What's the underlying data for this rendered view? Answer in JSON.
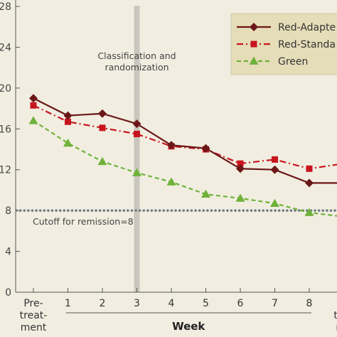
{
  "chart_data": {
    "type": "line",
    "x_ticks": [
      "Pre-\ntreat-\nment",
      "1",
      "2",
      "3",
      "4",
      "5",
      "6",
      "7",
      "8",
      "Po\ntrea\nme"
    ],
    "xlabel": "Week",
    "ylim": [
      0,
      28
    ],
    "y_ticks": [
      0,
      4,
      8,
      12,
      16,
      20,
      24,
      28
    ],
    "grid": false,
    "legend_position": "top-right",
    "series": [
      {
        "name": "Red-Adapted",
        "legend_label": "Red-Adapte",
        "color": "#6b1717",
        "line_style": "solid",
        "marker": "diamond",
        "values": [
          19.0,
          17.3,
          17.5,
          16.5,
          14.4,
          14.1,
          12.1,
          12.0,
          10.7,
          10.7
        ]
      },
      {
        "name": "Red-Standard",
        "legend_label": "Red-Standa",
        "color": "#c8141e",
        "line_style": "dash-dot",
        "marker": "square",
        "values": [
          18.3,
          16.7,
          16.1,
          15.5,
          14.3,
          14.0,
          12.6,
          13.0,
          12.1,
          12.6
        ]
      },
      {
        "name": "Green",
        "legend_label": "Green",
        "color": "#6fb23a",
        "line_style": "dashed",
        "marker": "triangle",
        "values": [
          16.8,
          14.6,
          12.8,
          11.7,
          10.8,
          9.6,
          9.2,
          8.7,
          7.8,
          7.4
        ]
      }
    ],
    "reference_line": {
      "value": 8,
      "label": "Cutoff for remission=8",
      "color": "#707a80"
    },
    "annotations": [
      {
        "text": "Classification and\nrandomization",
        "at_x": "3"
      }
    ]
  }
}
